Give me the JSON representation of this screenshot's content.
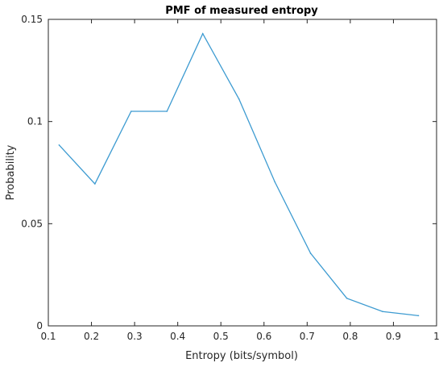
{
  "chart_data": {
    "type": "line",
    "title": "PMF of measured entropy",
    "xlabel": "Entropy (bits/symbol)",
    "ylabel": "Probability",
    "xlim": [
      0.1,
      1
    ],
    "ylim": [
      0,
      0.15
    ],
    "xticks": [
      0.1,
      0.2,
      0.3,
      0.4,
      0.5,
      0.6,
      0.7,
      0.8,
      0.9,
      1
    ],
    "xtick_labels": [
      "0.1",
      "0.2",
      "0.3",
      "0.4",
      "0.5",
      "0.6",
      "0.7",
      "0.8",
      "0.9",
      "1"
    ],
    "yticks": [
      0,
      0.05,
      0.1,
      0.15
    ],
    "ytick_labels": [
      "0",
      "0.05",
      "0.1",
      "0.15"
    ],
    "grid": false,
    "series": [
      {
        "color": "#3d9bd1",
        "x": [
          0.125,
          0.208,
          0.292,
          0.375,
          0.458,
          0.542,
          0.625,
          0.708,
          0.792,
          0.875,
          0.958
        ],
        "y": [
          0.0885,
          0.0695,
          0.105,
          0.105,
          0.143,
          0.111,
          0.0705,
          0.0355,
          0.0135,
          0.007,
          0.005
        ]
      }
    ]
  }
}
